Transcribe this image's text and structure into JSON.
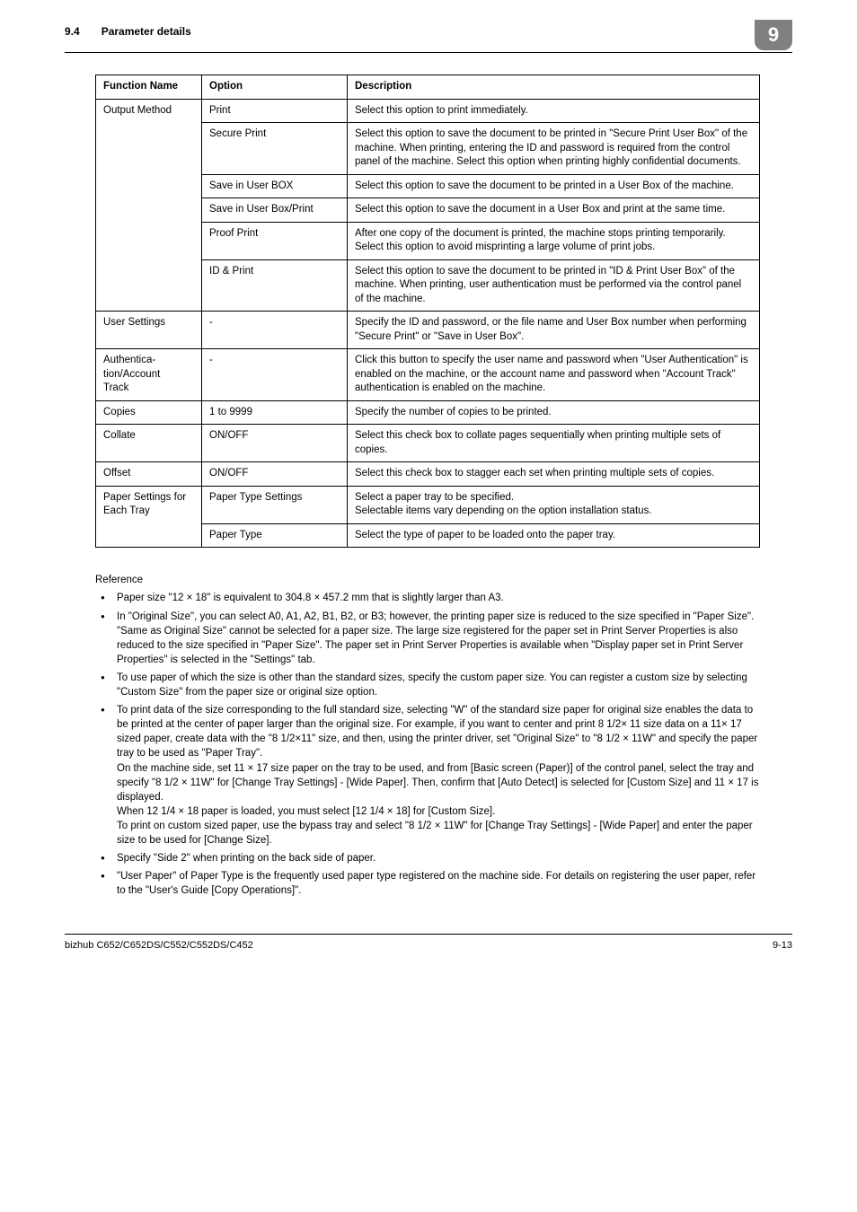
{
  "header": {
    "section_num": "9.4",
    "section_title": "Parameter details",
    "chapter_badge": "9"
  },
  "table": {
    "headers": {
      "fn": "Function Name",
      "opt": "Option",
      "desc": "Description"
    },
    "rows": [
      {
        "fn": "Output Method",
        "fn_span": 6,
        "opt": "Print",
        "desc": "Select this option to print immediately."
      },
      {
        "opt": "Secure Print",
        "desc": "Select this option to save the document to be printed in \"Secure Print User Box\" of the machine. When printing, entering the ID and password is required from the control panel of the machine. Select this option when printing highly confidential documents."
      },
      {
        "opt": "Save in User BOX",
        "desc": "Select this option to save the document to be printed in a User Box of the machine."
      },
      {
        "opt": "Save in User Box/Print",
        "desc": "Select this option to save the document in a User Box and print at the same time."
      },
      {
        "opt": "Proof Print",
        "desc": "After one copy of the document is printed, the machine stops printing temporarily. Select this option to avoid misprinting a large volume of print jobs."
      },
      {
        "opt": "ID & Print",
        "desc": "Select this option to save the document to be printed in \"ID & Print User Box\" of the machine. When printing, user authentication must be performed via the control panel of the machine."
      },
      {
        "fn": "User Settings",
        "fn_span": 1,
        "opt": "-",
        "desc": "Specify the ID and password, or the file name and User Box number when performing \"Secure Print\" or \"Save in User Box\"."
      },
      {
        "fn": "Authentication/Account Track",
        "fn_span": 1,
        "opt": "-",
        "desc": "Click this button to specify the user name and password when \"User Authentication\" is enabled on the machine, or the account name and password when \"Account Track\" authentication is enabled on the machine."
      },
      {
        "fn": "Copies",
        "fn_span": 1,
        "opt": "1 to 9999",
        "desc": "Specify the number of copies to be printed."
      },
      {
        "fn": "Collate",
        "fn_span": 1,
        "opt": "ON/OFF",
        "desc": "Select this check box to collate pages sequentially when printing multiple sets of copies."
      },
      {
        "fn": "Offset",
        "fn_span": 1,
        "opt": "ON/OFF",
        "desc": "Select this check box to stagger each set when printing multiple sets of copies."
      },
      {
        "fn": "Paper Settings for Each Tray",
        "fn_span": 2,
        "opt": "Paper Type Settings",
        "desc": "Select a paper tray to be specified.\nSelectable items vary depending on the option installation status."
      },
      {
        "opt": "Paper Type",
        "desc": "Select the type of paper to be loaded onto the paper tray."
      }
    ]
  },
  "reference": {
    "heading": "Reference",
    "items": [
      "Paper size \"12 × 18\" is equivalent to 304.8 × 457.2 mm that is slightly larger than A3.",
      "In \"Original Size\", you can select A0, A1, A2, B1, B2, or B3; however, the printing paper size is reduced to the size specified in \"Paper Size\". \"Same as Original Size\" cannot be selected for a paper size. The large size registered for the paper set in Print Server Properties is also reduced to the size specified in \"Paper Size\". The paper set in Print Server Properties is available when \"Display paper set in Print Server Properties\" is selected in the \"Settings\" tab.",
      "To use paper of which the size is other than the standard sizes, specify the custom paper size. You can register a custom size by selecting \"Custom Size\" from the paper size or original size option.",
      "To print data of the size corresponding to the full standard size, selecting \"W\" of the standard size paper for original size enables the data to be printed at the center of paper larger than the original size. For example, if you want to center and print 8 1/2× 11 size data on a 11× 17 sized paper, create data with the \"8 1/2×11\" size, and then, using the printer driver, set \"Original Size\" to \"8 1/2 × 11W\" and specify the paper tray to be used as \"Paper Tray\".\nOn the machine side, set 11 × 17 size paper on the tray to be used, and from [Basic screen (Paper)] of the control panel, select the tray and specify \"8 1/2 × 11W\" for [Change Tray Settings] - [Wide Paper]. Then, confirm that [Auto Detect] is selected for [Custom Size] and 11 × 17 is displayed.\n When 12 1/4 × 18 paper is loaded, you must select [12 1/4 × 18] for [Custom Size].\nTo print on custom sized paper, use the bypass tray and select \"8 1/2 × 11W\" for [Change Tray Settings] - [Wide Paper] and enter the paper size to be used for [Change Size].",
      "Specify \"Side 2\" when printing on the back side of paper.",
      "\"User Paper\" of Paper Type is the frequently used paper type registered on the machine side. For details on registering the user paper, refer to the \"User's Guide [Copy Operations]\"."
    ]
  },
  "footer": {
    "model": "bizhub C652/C652DS/C552/C552DS/C452",
    "page": "9-13"
  }
}
